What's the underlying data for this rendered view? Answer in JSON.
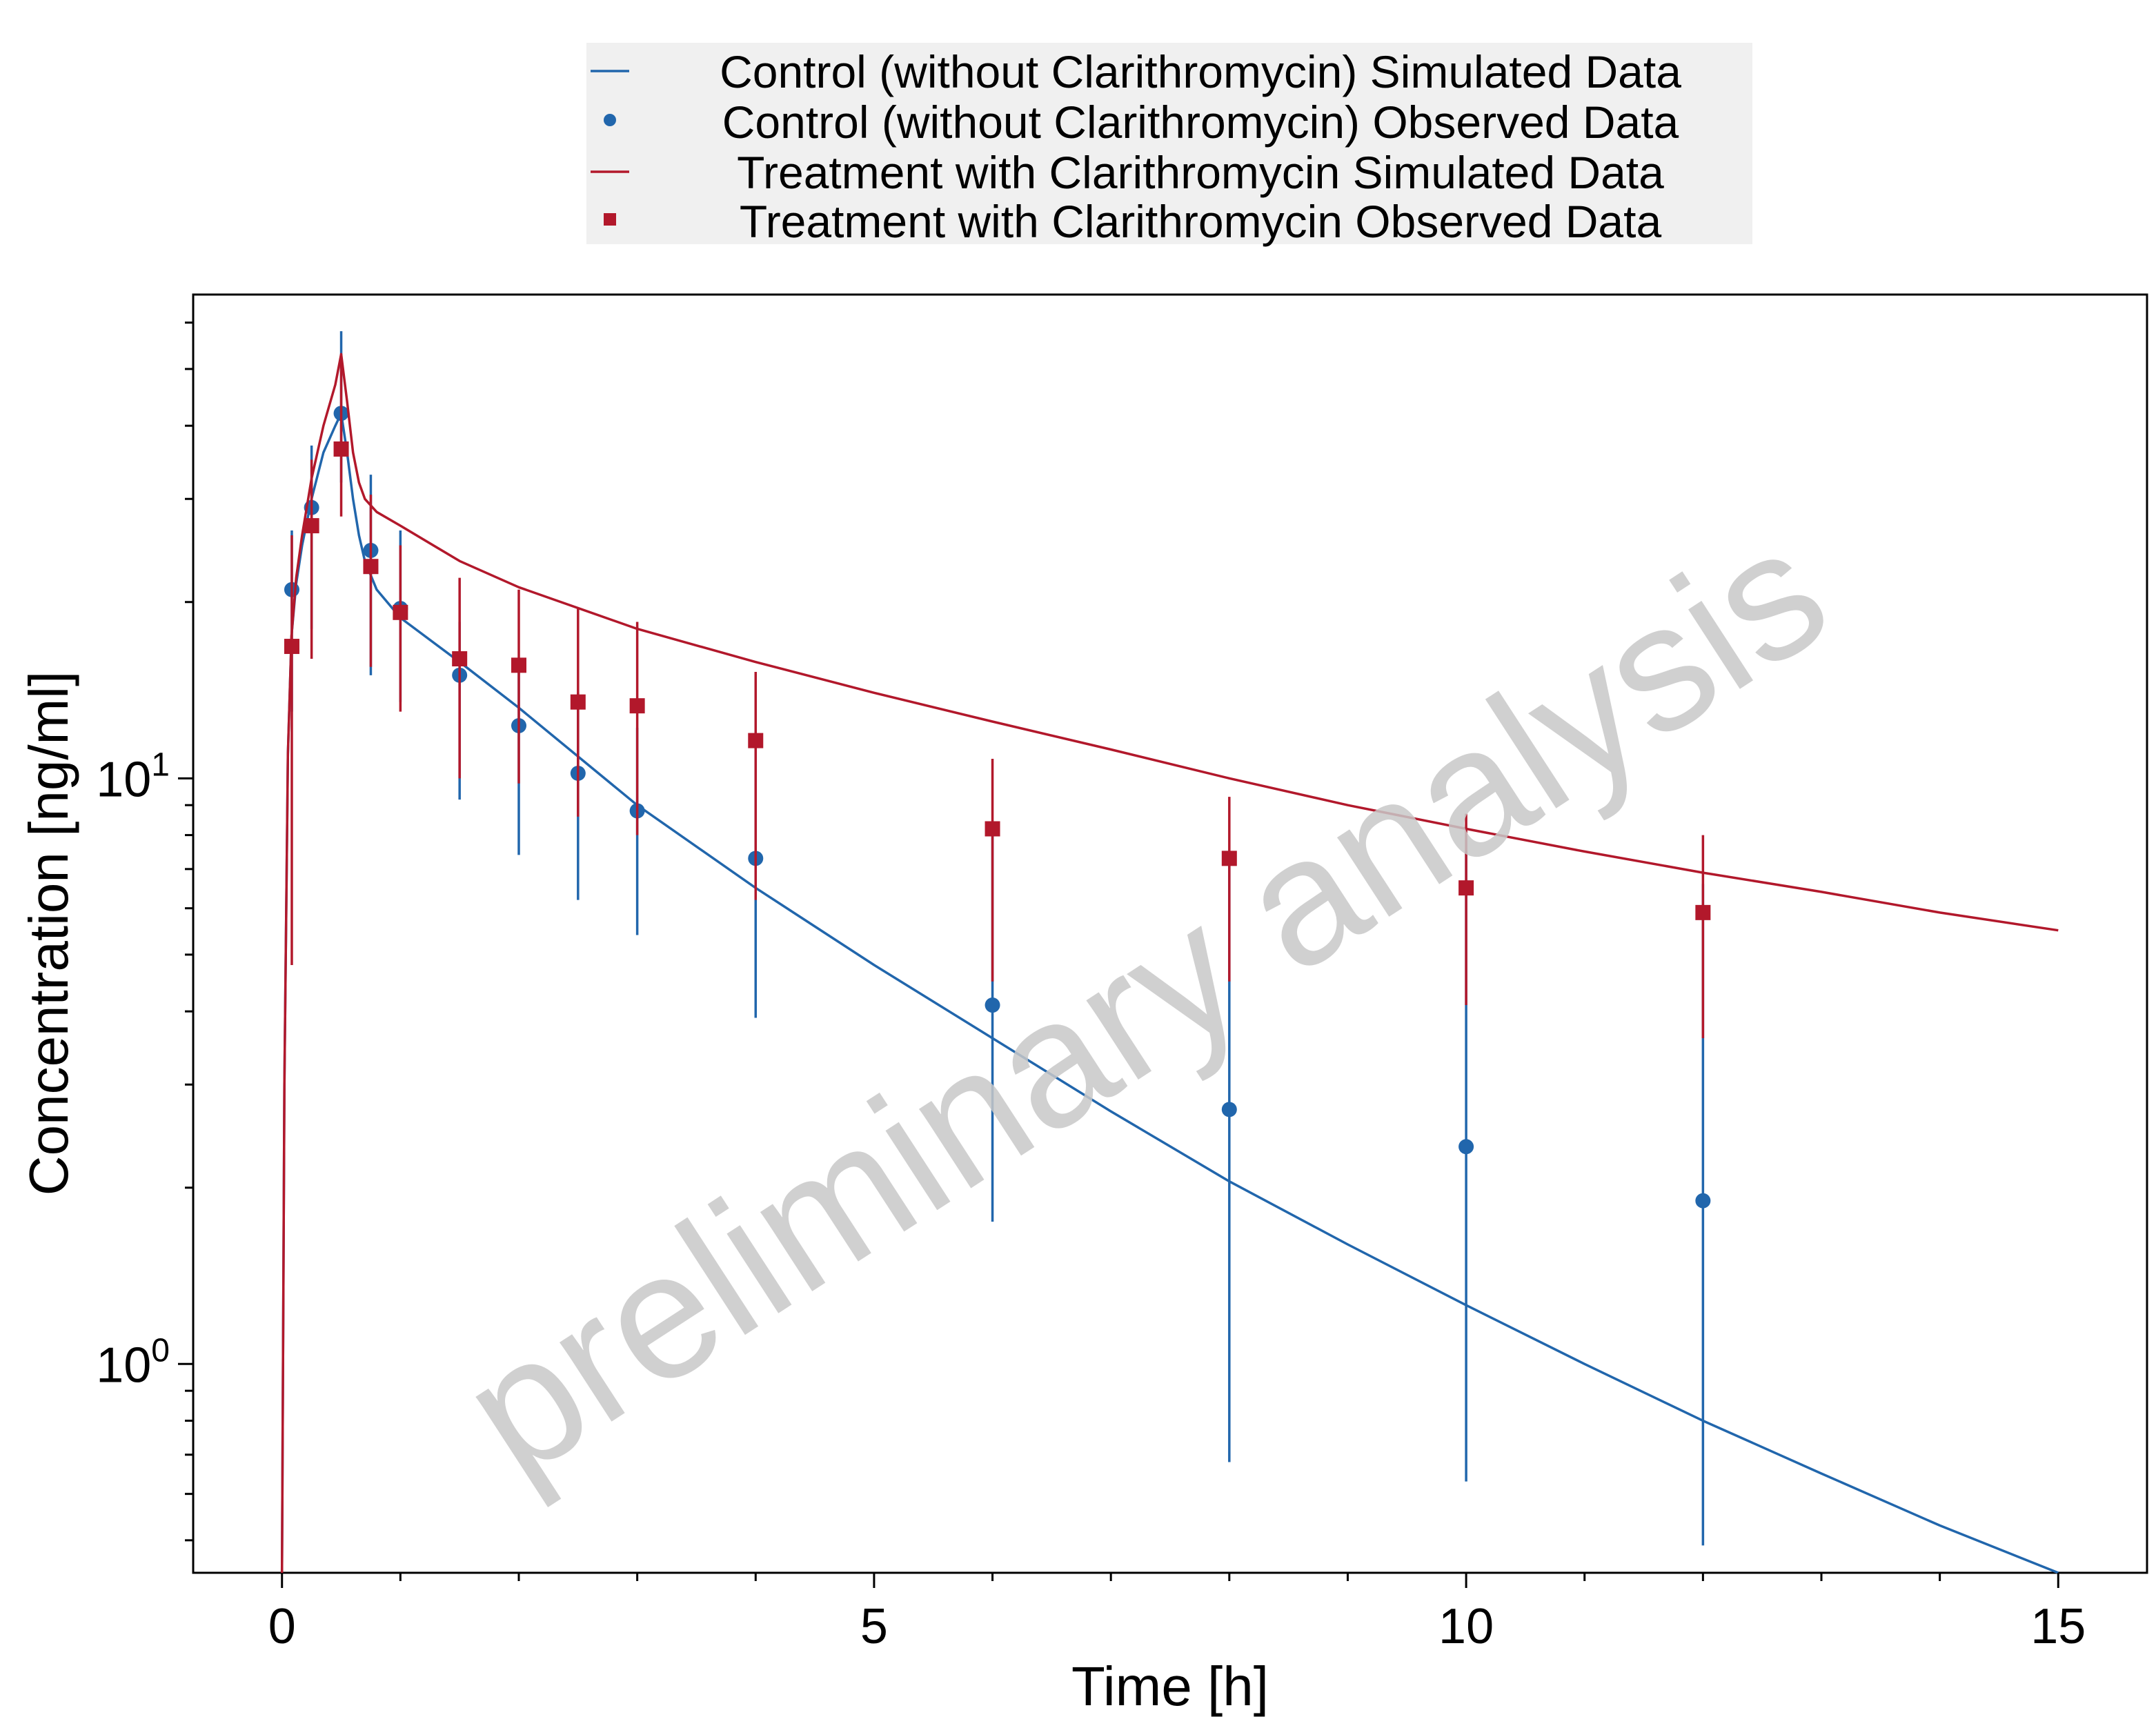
{
  "chart_data": {
    "type": "line",
    "title": "",
    "xlabel": "Time [h]",
    "ylabel": "Concentration [ng/ml]",
    "y_scale": "log",
    "xlim": [
      -0.75,
      15.75
    ],
    "ylim": [
      0.44,
      67
    ],
    "x_ticks": [
      0,
      5,
      10,
      15
    ],
    "x_tick_labels": [
      "0",
      "5",
      "10",
      "15"
    ],
    "y_ticks": [
      1,
      10
    ],
    "y_tick_labels": [
      {
        "base": "10",
        "exp": "0"
      },
      {
        "base": "10",
        "exp": "1"
      }
    ],
    "grid": false,
    "legend_position": "top-center",
    "watermark": "preliminary analysis",
    "colors": {
      "control": "#2166ac",
      "treatment": "#b2182b",
      "watermark": "#c8c8c8",
      "legend_bg": "#f0f0f0"
    },
    "series": [
      {
        "name": "Control (without Clarithromycin) Simulated Data",
        "kind": "line",
        "color": "#2166ac",
        "x": [
          0,
          0.02,
          0.05,
          0.08,
          0.12,
          0.17,
          0.25,
          0.35,
          0.45,
          0.5,
          0.55,
          0.6,
          0.65,
          0.7,
          0.8,
          1.0,
          1.5,
          2.0,
          3.0,
          4.0,
          5.0,
          6.0,
          7.0,
          8.0,
          9.0,
          10.0,
          11.0,
          12.0,
          13.0,
          14.0,
          15.0
        ],
        "y": [
          0.44,
          3.0,
          11.0,
          17.5,
          21.5,
          25.0,
          30.0,
          36.0,
          40.0,
          42.0,
          36.0,
          30.0,
          26.0,
          23.5,
          21.0,
          18.8,
          15.8,
          13.2,
          9.0,
          6.5,
          4.8,
          3.6,
          2.7,
          2.05,
          1.6,
          1.26,
          1.0,
          0.8,
          0.65,
          0.53,
          0.44
        ]
      },
      {
        "name": "Control (without Clarithromycin) Observed Data",
        "kind": "points",
        "marker": "circle",
        "color": "#2166ac",
        "x": [
          0.083,
          0.25,
          0.5,
          0.75,
          1.0,
          1.5,
          2.0,
          2.5,
          3.0,
          4.0,
          6.0,
          8.0,
          10.0,
          12.0
        ],
        "y": [
          21.0,
          29.0,
          42.0,
          24.5,
          19.5,
          15.0,
          12.3,
          10.2,
          8.8,
          7.3,
          4.1,
          2.72,
          2.35,
          1.9
        ],
        "err_low": [
          13.0,
          18.0,
          32.0,
          15.0,
          13.5,
          9.2,
          7.4,
          6.2,
          5.4,
          3.9,
          1.75,
          0.68,
          0.63,
          0.49
        ],
        "err_high": [
          26.5,
          37.0,
          58.0,
          33.0,
          26.5,
          18.5,
          16.0,
          14.0,
          12.2,
          11.5,
          8.2,
          7.3,
          7.5,
          6.6
        ]
      },
      {
        "name": "Treatment with Clarithromycin Simulated Data",
        "kind": "line",
        "color": "#b2182b",
        "x": [
          0,
          0.02,
          0.05,
          0.08,
          0.12,
          0.17,
          0.25,
          0.35,
          0.45,
          0.5,
          0.55,
          0.6,
          0.65,
          0.7,
          0.8,
          1.0,
          1.5,
          2.0,
          3.0,
          4.0,
          5.0,
          6.0,
          7.0,
          8.0,
          9.0,
          10.0,
          11.0,
          12.0,
          13.0,
          14.0,
          15.0
        ],
        "y": [
          0.44,
          3.0,
          11.0,
          17.5,
          22.0,
          26.0,
          32.5,
          40.0,
          47.0,
          53.0,
          44.0,
          36.0,
          32.0,
          30.0,
          28.5,
          27.0,
          23.5,
          21.2,
          18.0,
          15.8,
          14.0,
          12.5,
          11.2,
          10.0,
          9.0,
          8.2,
          7.5,
          6.9,
          6.4,
          5.9,
          5.5
        ]
      },
      {
        "name": "Treatment with Clarithromycin Observed Data",
        "kind": "points",
        "marker": "square",
        "color": "#b2182b",
        "x": [
          0.083,
          0.25,
          0.5,
          0.75,
          1.0,
          1.5,
          2.0,
          2.5,
          3.0,
          4.0,
          6.0,
          8.0,
          10.0,
          12.0
        ],
        "y": [
          16.8,
          27.0,
          36.5,
          23.0,
          19.2,
          16.0,
          15.6,
          13.5,
          13.3,
          11.6,
          8.2,
          7.3,
          6.5,
          5.9
        ],
        "err_low": [
          4.8,
          16.0,
          28.0,
          15.5,
          13.0,
          10.0,
          9.8,
          8.6,
          8.0,
          6.2,
          4.5,
          4.5,
          4.1,
          3.6
        ],
        "err_high": [
          26.0,
          35.0,
          52.0,
          30.5,
          25.0,
          22.0,
          21.0,
          19.5,
          18.5,
          15.2,
          10.8,
          9.3,
          8.7,
          8.0
        ]
      }
    ]
  }
}
